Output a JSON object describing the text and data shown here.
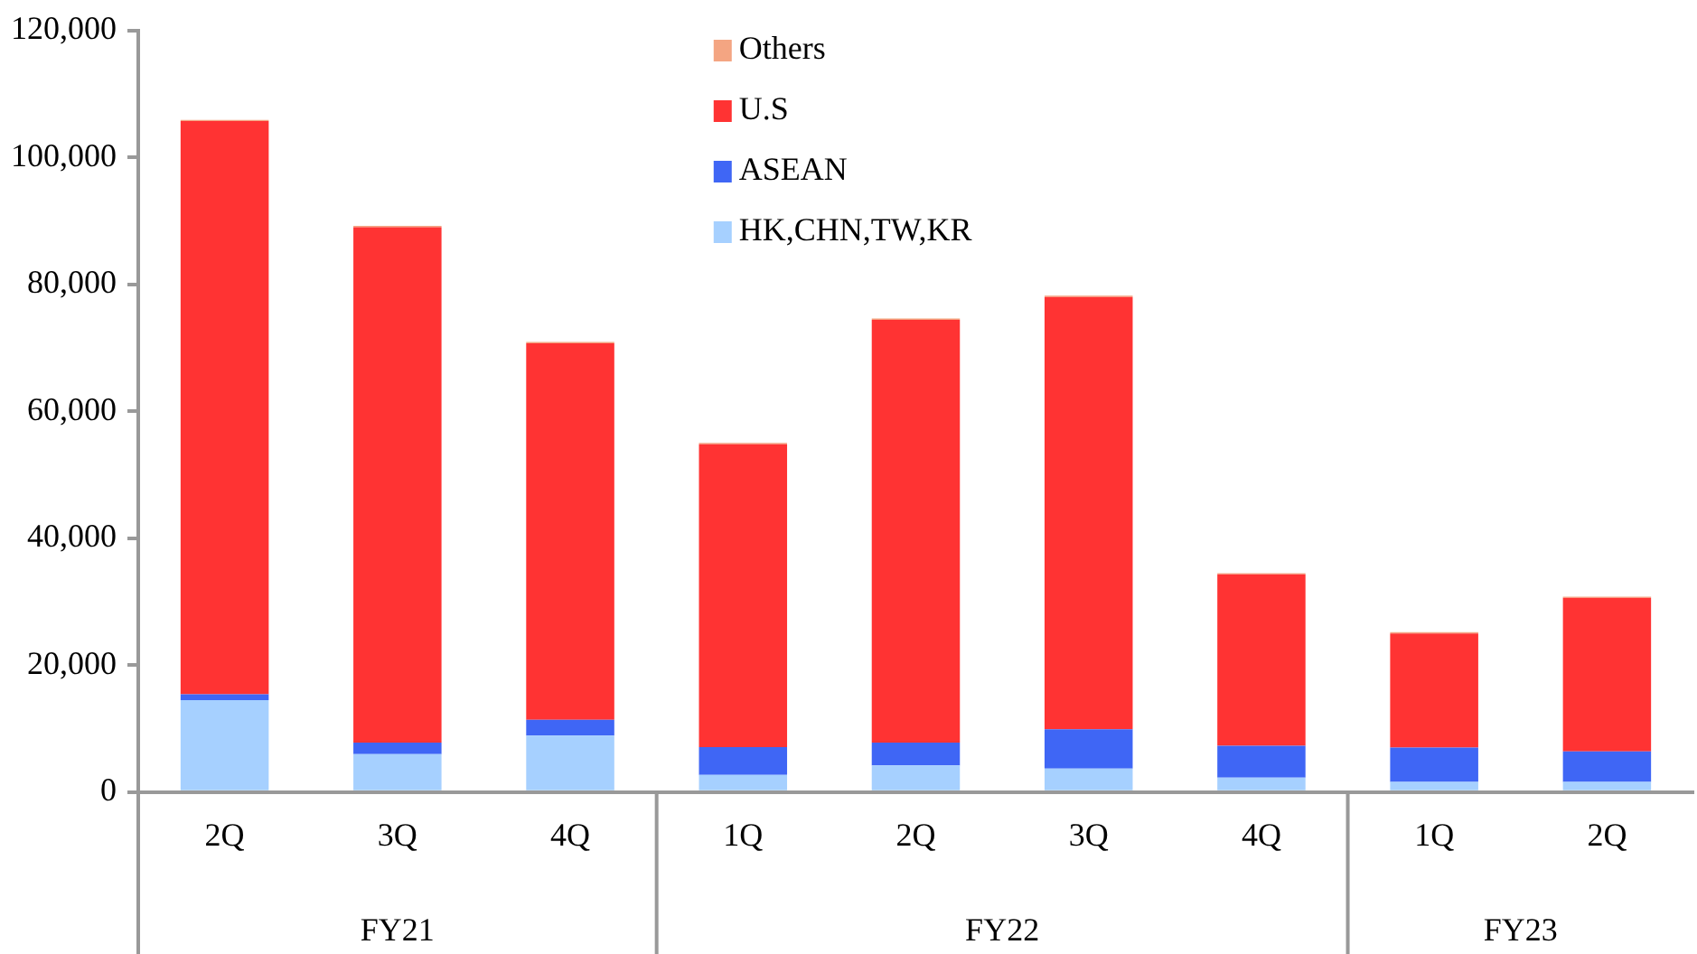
{
  "chart_data": {
    "type": "bar",
    "stacked": true,
    "categories": [
      "2Q",
      "3Q",
      "4Q",
      "1Q",
      "2Q",
      "3Q",
      "4Q",
      "1Q",
      "2Q"
    ],
    "series": [
      {
        "name": "HK,CHN,TW,KR",
        "color": "#a6d0ff",
        "values": [
          14500,
          6000,
          8900,
          2700,
          4200,
          3700,
          2300,
          1600,
          1600
        ]
      },
      {
        "name": "ASEAN",
        "color": "#3f66f5",
        "values": [
          900,
          1800,
          2500,
          4400,
          3600,
          6200,
          5000,
          5400,
          4800
        ]
      },
      {
        "name": "U.S",
        "color": "#ff3333",
        "values": [
          90300,
          81200,
          59300,
          47700,
          66600,
          68100,
          27000,
          18000,
          24200
        ]
      },
      {
        "name": "Others",
        "color": "#f4a582",
        "values": [
          200,
          200,
          200,
          200,
          200,
          200,
          200,
          200,
          200
        ]
      }
    ],
    "ylim": [
      0,
      120000
    ],
    "yticks": [
      0,
      {
        "value": 20000,
        "label": "20,000"
      },
      {
        "value": 40000,
        "label": "40,000"
      },
      {
        "value": 60000,
        "label": "60,000"
      },
      {
        "value": 80000,
        "label": "80,000"
      },
      {
        "value": 100000,
        "label": "100,000"
      },
      {
        "value": 120000,
        "label": "120,000"
      }
    ],
    "grid": false,
    "legend": "top",
    "annotations": [
      "FY21",
      "FY22",
      "FY23"
    ]
  }
}
